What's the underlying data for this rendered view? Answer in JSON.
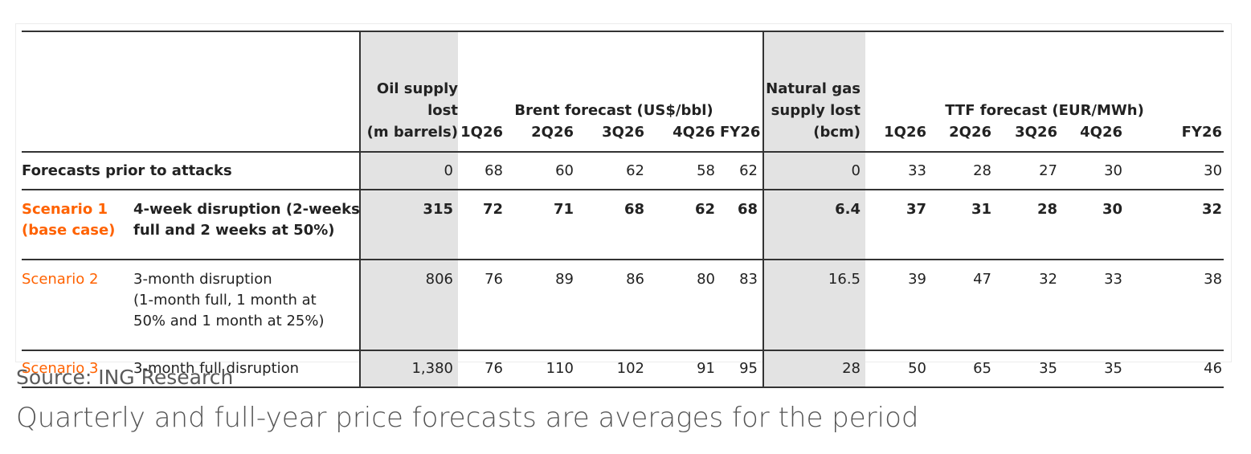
{
  "table": {
    "headers": {
      "oil_supply": [
        "Oil supply",
        "lost",
        "(m barrels)"
      ],
      "brent_group": "Brent forecast (US$/bbl)",
      "gas_supply": [
        "Natural gas",
        "supply lost",
        "(bcm)"
      ],
      "ttf_group": "TTF forecast (EUR/MWh)",
      "brent_cols": [
        "1Q26",
        "2Q26",
        "3Q26",
        "4Q26",
        "FY26"
      ],
      "ttf_cols": [
        "1Q26",
        "2Q26",
        "3Q26",
        "4Q26",
        "FY26"
      ]
    },
    "rows": [
      {
        "label": "Forecasts prior to attacks",
        "oil": "0",
        "brent": [
          "68",
          "60",
          "62",
          "58",
          "62"
        ],
        "gas": "0",
        "ttf": [
          "33",
          "28",
          "27",
          "30",
          "30"
        ]
      },
      {
        "scenario": [
          "Scenario 1",
          "(base case)"
        ],
        "desc": [
          "4-week disruption (2-weeks",
          "full and 2 weeks at 50%)"
        ],
        "oil": "315",
        "brent": [
          "72",
          "71",
          "68",
          "62",
          "68"
        ],
        "gas": "6.4",
        "ttf": [
          "37",
          "31",
          "28",
          "30",
          "32"
        ]
      },
      {
        "scenario": [
          "Scenario 2"
        ],
        "desc": [
          "3-month disruption",
          "(1-month full, 1 month at",
          "50% and 1 month at 25%)"
        ],
        "oil": "806",
        "brent": [
          "76",
          "89",
          "86",
          "80",
          "83"
        ],
        "gas": "16.5",
        "ttf": [
          "39",
          "47",
          "32",
          "33",
          "38"
        ]
      },
      {
        "scenario": [
          "Scenario 3"
        ],
        "desc": [
          "3-month full disruption"
        ],
        "oil": "1,380",
        "brent": [
          "76",
          "110",
          "102",
          "91",
          "95"
        ],
        "gas": "28",
        "ttf": [
          "50",
          "65",
          "35",
          "35",
          "46"
        ]
      }
    ]
  },
  "source": "Source: ING Research",
  "caption": "Quarterly and full-year price forecasts are averages for the period",
  "colors": {
    "scenario_label": "#ff6200",
    "shade": "#e3e3e3"
  }
}
